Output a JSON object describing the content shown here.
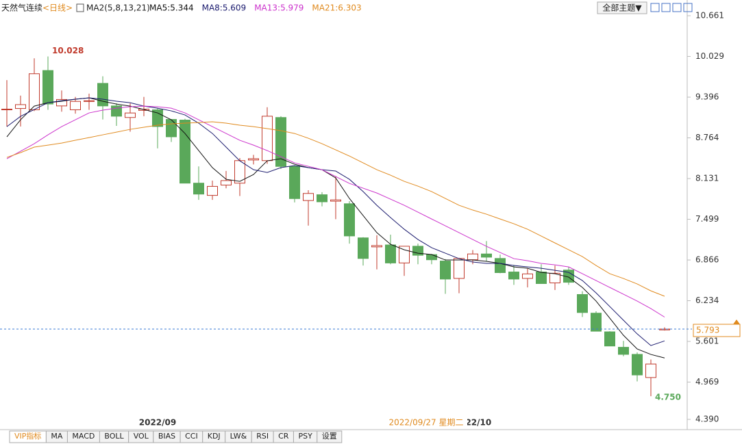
{
  "header": {
    "title": "天然气连续",
    "period": "<日线>",
    "ma_label": "MA2(5,8,13,21)",
    "theme_button": "全部主题▼"
  },
  "chart_data": {
    "type": "candlestick",
    "categories": [
      null,
      null,
      null,
      null,
      null,
      null,
      null,
      null,
      null,
      null,
      null,
      "2022/09",
      null,
      null,
      null,
      null,
      null,
      null,
      null,
      null,
      null,
      null,
      null,
      null,
      null,
      null,
      null,
      null,
      null,
      null,
      null,
      null,
      null,
      null,
      "2022/10",
      null,
      null,
      null,
      null,
      null,
      null,
      null,
      null,
      null,
      null,
      null,
      null,
      null,
      null
    ],
    "cursor_label": "2022/09/27 星期二",
    "open": [
      9.2,
      9.22,
      9.2,
      9.81,
      9.26,
      9.2,
      9.33,
      9.61,
      9.26,
      9.08,
      9.19,
      9.2,
      9.05,
      9.04,
      8.06,
      7.87,
      8.03,
      8.06,
      8.42,
      8.41,
      9.08,
      8.32,
      7.79,
      7.88,
      7.78,
      7.74,
      7.21,
      7.07,
      7.1,
      6.82,
      7.08,
      6.95,
      6.85,
      6.58,
      6.87,
      6.96,
      6.89,
      6.68,
      6.58,
      6.68,
      6.51,
      6.71,
      6.33,
      6.04,
      5.75,
      5.51,
      5.4,
      5.04,
      5.78
    ],
    "high": [
      9.66,
      9.42,
      10.0,
      10.028,
      9.5,
      9.4,
      9.45,
      9.72,
      9.3,
      9.3,
      9.4,
      9.22,
      9.05,
      9.06,
      8.32,
      8.1,
      8.25,
      8.45,
      8.5,
      9.24,
      9.1,
      8.33,
      7.95,
      7.92,
      8.17,
      7.78,
      7.22,
      7.25,
      7.26,
      7.08,
      7.12,
      6.96,
      6.88,
      6.9,
      7.02,
      7.16,
      6.95,
      6.79,
      6.73,
      6.8,
      6.78,
      6.76,
      6.38,
      6.07,
      5.76,
      5.61,
      5.43,
      5.32,
      5.82
    ],
    "low": [
      8.94,
      8.94,
      9.18,
      9.2,
      9.17,
      9.14,
      9.2,
      9.05,
      8.95,
      8.86,
      9.1,
      8.6,
      8.7,
      8.06,
      7.8,
      7.8,
      7.98,
      7.86,
      8.35,
      8.36,
      8.28,
      7.76,
      7.4,
      7.7,
      7.5,
      7.12,
      6.78,
      6.72,
      6.8,
      6.62,
      6.8,
      6.8,
      6.34,
      6.35,
      6.8,
      6.85,
      6.66,
      6.48,
      6.44,
      6.5,
      6.4,
      6.48,
      5.98,
      5.76,
      5.53,
      5.37,
      4.98,
      4.75,
      5.77
    ],
    "close": [
      9.21,
      9.28,
      9.76,
      9.29,
      9.36,
      9.33,
      9.34,
      9.26,
      9.1,
      9.15,
      9.21,
      8.94,
      8.78,
      8.06,
      7.89,
      8.01,
      8.1,
      8.41,
      8.44,
      9.1,
      8.32,
      7.82,
      7.9,
      7.77,
      7.8,
      7.24,
      6.89,
      7.09,
      6.82,
      7.08,
      6.94,
      6.87,
      6.57,
      6.89,
      6.96,
      6.91,
      6.67,
      6.57,
      6.65,
      6.5,
      6.66,
      6.52,
      6.05,
      5.76,
      5.53,
      5.4,
      5.08,
      5.25,
      5.793
    ],
    "high_label": "10.028",
    "low_label": "4.750",
    "up_color": "#c0392b",
    "down_color": "#5aa85a",
    "series": [
      {
        "name": "MA5:5.344",
        "color": "#111111",
        "values": [
          8.779,
          9.045,
          9.257,
          9.31,
          9.332,
          9.364,
          9.385,
          9.332,
          9.289,
          9.257,
          9.204,
          9.151,
          9.045,
          8.832,
          8.566,
          8.301,
          8.12,
          8.088,
          8.194,
          8.407,
          8.439,
          8.354,
          8.301,
          8.269,
          8.141,
          7.822,
          7.557,
          7.291,
          7.11,
          7.025,
          6.972,
          6.951,
          6.866,
          6.866,
          6.866,
          6.845,
          6.813,
          6.759,
          6.738,
          6.674,
          6.653,
          6.6,
          6.44,
          6.228,
          5.962,
          5.696,
          5.484,
          5.399,
          5.344
        ]
      },
      {
        "name": "MA8:5.609",
        "color": "#1a1a6e",
        "values": [
          8.938,
          9.098,
          9.204,
          9.31,
          9.342,
          9.364,
          9.385,
          9.364,
          9.332,
          9.31,
          9.257,
          9.225,
          9.183,
          9.119,
          8.992,
          8.832,
          8.62,
          8.407,
          8.269,
          8.226,
          8.301,
          8.333,
          8.301,
          8.269,
          8.248,
          8.12,
          7.929,
          7.716,
          7.525,
          7.344,
          7.185,
          7.057,
          6.972,
          6.887,
          6.834,
          6.813,
          6.813,
          6.781,
          6.759,
          6.738,
          6.706,
          6.674,
          6.547,
          6.355,
          6.143,
          5.93,
          5.718,
          5.537,
          5.609
        ]
      },
      {
        "name": "MA13:5.979",
        "color": "#cc33cc",
        "values": [
          8.439,
          8.556,
          8.673,
          8.811,
          8.938,
          9.045,
          9.151,
          9.194,
          9.225,
          9.247,
          9.257,
          9.247,
          9.225,
          9.151,
          9.045,
          8.938,
          8.832,
          8.726,
          8.651,
          8.566,
          8.471,
          8.375,
          8.322,
          8.269,
          8.163,
          8.056,
          7.982,
          7.907,
          7.812,
          7.716,
          7.61,
          7.503,
          7.397,
          7.291,
          7.185,
          7.078,
          6.983,
          6.887,
          6.855,
          6.813,
          6.791,
          6.759,
          6.653,
          6.547,
          6.44,
          6.334,
          6.228,
          6.111,
          5.979
        ]
      },
      {
        "name": "MA21:6.303",
        "color": "#e08a1e",
        "values": [
          8.46,
          8.534,
          8.62,
          8.651,
          8.683,
          8.726,
          8.768,
          8.811,
          8.853,
          8.896,
          8.928,
          8.96,
          8.981,
          8.992,
          9.002,
          9.013,
          8.992,
          8.96,
          8.938,
          8.907,
          8.875,
          8.832,
          8.758,
          8.673,
          8.577,
          8.481,
          8.375,
          8.269,
          8.184,
          8.088,
          8.014,
          7.929,
          7.822,
          7.716,
          7.642,
          7.578,
          7.503,
          7.429,
          7.344,
          7.238,
          7.131,
          7.025,
          6.919,
          6.781,
          6.653,
          6.579,
          6.494,
          6.387,
          6.303
        ]
      }
    ],
    "ylim": [
      4.39,
      10.661
    ],
    "yticks": [
      10.661,
      10.029,
      9.396,
      8.764,
      8.131,
      7.499,
      6.866,
      6.234,
      5.601,
      4.969,
      {
        "value": 4.39,
        "label": "4.390"
      }
    ],
    "grid": false
  },
  "toolbar": {
    "tabs": [
      "VIP指标",
      "MA",
      "MACD",
      "BOLL",
      "VOL",
      "BIAS",
      "CCI",
      "KDJ",
      "LW&",
      "RSI",
      "CR",
      "PSY",
      "设置"
    ]
  }
}
